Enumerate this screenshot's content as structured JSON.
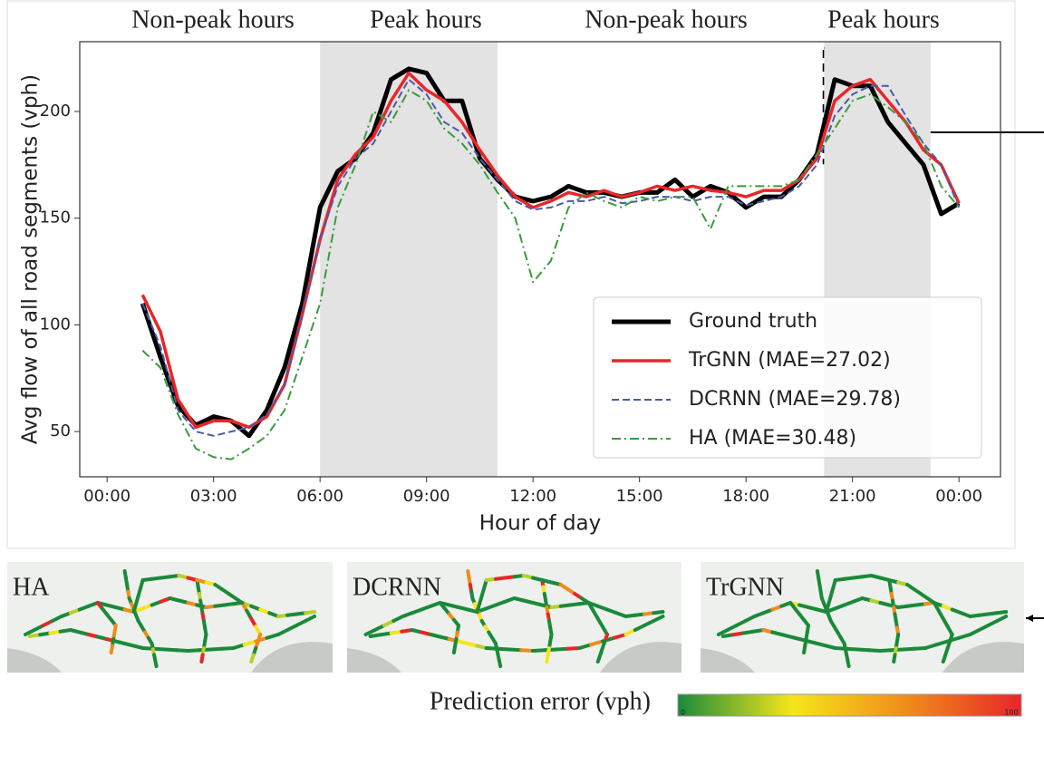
{
  "chart_data": {
    "type": "line",
    "region_labels": [
      "Non-peak hours",
      "Peak hours",
      "Non-peak hours",
      "Peak hours"
    ],
    "shaded_regions": [
      [
        6,
        11
      ],
      [
        20.2,
        23.2
      ]
    ],
    "xlabel": "Hour of day",
    "ylabel": "Avg flow of all road segments (vph)",
    "x": [
      1,
      1.5,
      2,
      2.5,
      3,
      3.5,
      4,
      4.5,
      5,
      5.5,
      6,
      6.5,
      7,
      7.5,
      8,
      8.5,
      9,
      9.5,
      10,
      10.5,
      11,
      11.5,
      12,
      12.5,
      13,
      13.5,
      14,
      14.5,
      15,
      15.5,
      16,
      16.5,
      17,
      17.5,
      18,
      18.5,
      19,
      19.5,
      20,
      20.5,
      21,
      21.5,
      22,
      22.5,
      23,
      23.5,
      24
    ],
    "series": [
      {
        "name": "Ground truth",
        "color": "#000000",
        "linestyle": "solid",
        "width": 5,
        "values": [
          110,
          85,
          62,
          53,
          57,
          55,
          48,
          60,
          80,
          110,
          155,
          172,
          178,
          190,
          215,
          220,
          218,
          205,
          205,
          178,
          168,
          160,
          158,
          160,
          165,
          162,
          162,
          160,
          162,
          162,
          168,
          160,
          165,
          162,
          155,
          160,
          160,
          168,
          180,
          215,
          212,
          212,
          195,
          185,
          175,
          152,
          157
        ]
      },
      {
        "name": "TrGNN (MAE=27.02)",
        "color": "#e8262a",
        "linestyle": "solid",
        "width": 3.5,
        "values": [
          114,
          97,
          65,
          52,
          55,
          55,
          52,
          57,
          72,
          105,
          140,
          168,
          180,
          188,
          205,
          218,
          210,
          205,
          195,
          182,
          170,
          160,
          155,
          158,
          162,
          160,
          163,
          160,
          162,
          165,
          163,
          165,
          163,
          162,
          160,
          163,
          163,
          168,
          178,
          205,
          212,
          215,
          205,
          195,
          182,
          175,
          157
        ]
      },
      {
        "name": "DCRNN (MAE=29.78)",
        "color": "#4a5aa8",
        "linestyle": "dashed",
        "width": 2,
        "values": [
          110,
          90,
          60,
          50,
          48,
          50,
          52,
          58,
          72,
          105,
          140,
          165,
          178,
          185,
          200,
          215,
          208,
          195,
          190,
          178,
          168,
          158,
          154,
          155,
          158,
          158,
          160,
          157,
          158,
          160,
          160,
          158,
          160,
          160,
          156,
          158,
          160,
          165,
          175,
          198,
          208,
          212,
          212,
          198,
          185,
          175,
          155
        ]
      },
      {
        "name": "HA (MAE=30.48)",
        "color": "#3a9a3a",
        "linestyle": "dashdot",
        "width": 2,
        "values": [
          88,
          80,
          58,
          42,
          38,
          37,
          42,
          48,
          60,
          85,
          110,
          155,
          175,
          200,
          195,
          210,
          205,
          192,
          185,
          175,
          162,
          150,
          120,
          130,
          155,
          162,
          158,
          155,
          160,
          158,
          160,
          160,
          145,
          165,
          165,
          165,
          165,
          168,
          180,
          192,
          205,
          208,
          202,
          195,
          185,
          165,
          155
        ]
      }
    ],
    "xlim": [
      -0.77,
      25.17
    ],
    "xticks": [
      {
        "value": 0,
        "label": "00:00"
      },
      {
        "value": 3,
        "label": "03:00"
      },
      {
        "value": 6,
        "label": "06:00"
      },
      {
        "value": 9,
        "label": "09:00"
      },
      {
        "value": 12,
        "label": "12:00"
      },
      {
        "value": 15,
        "label": "15:00"
      },
      {
        "value": 18,
        "label": "18:00"
      },
      {
        "value": 21,
        "label": "21:00"
      },
      {
        "value": 24,
        "label": "00:00"
      }
    ],
    "ylim": [
      28.8,
      232.7
    ],
    "yticks": [
      50,
      100,
      150,
      200
    ],
    "legend": "lower right"
  },
  "maps": [
    "HA",
    "DCRNN",
    "TrGNN"
  ],
  "colorbar": {
    "label": "Prediction error (vph)",
    "ticks": [
      0,
      100
    ],
    "colors": [
      "#1a8a3a",
      "#f5e61a",
      "#f08c1a",
      "#e8262a"
    ]
  }
}
